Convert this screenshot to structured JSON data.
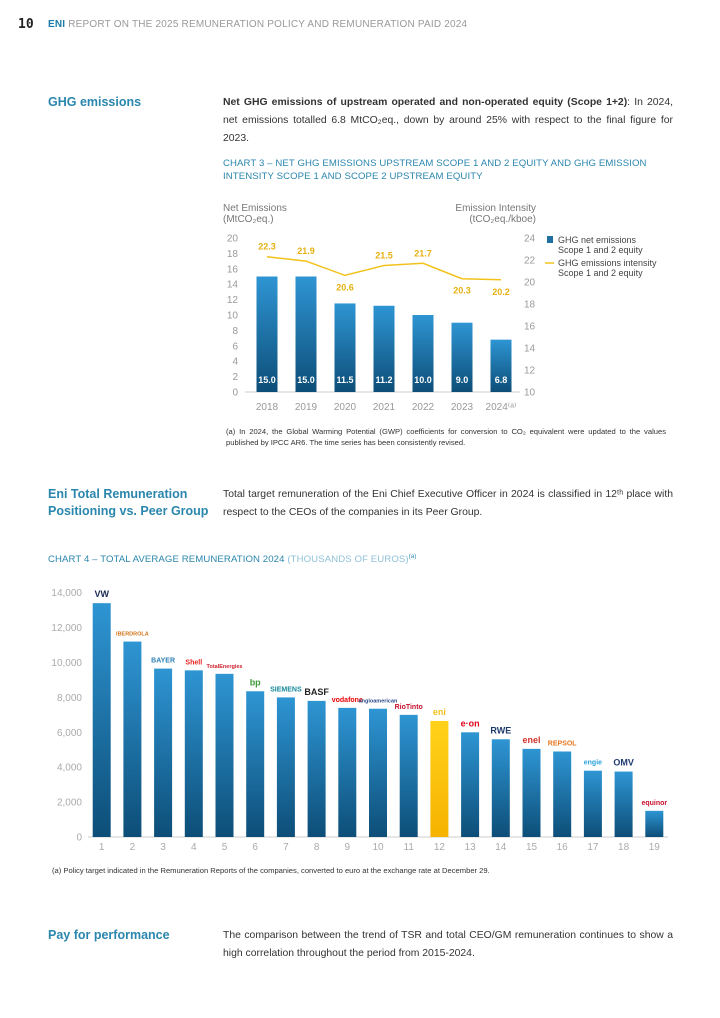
{
  "header": {
    "page_number": "10",
    "brand": "ENI",
    "title": "REPORT ON THE 2025 REMUNERATION POLICY AND REMUNERATION PAID 2024"
  },
  "ghg": {
    "heading": "GHG emissions",
    "text_bold": "Net GHG emissions of upstream operated and non-operated equity (Scope 1+2)",
    "text_rest": ": In 2024, net emissions totalled 6.8 MtCO₂eq., down by around 25% with respect to the final figure for 2023."
  },
  "peer": {
    "heading_line1": "Eni Total Remuneration",
    "heading_line2": "Positioning vs. Peer Group",
    "text": "Total target remuneration of the Eni Chief Executive Officer in 2024 is classified in 12ᵗʰ place with respect to the CEOs of the companies in its Peer Group."
  },
  "pay": {
    "heading": "Pay for performance",
    "text": "The comparison between the trend of TSR and total CEO/GM remuneration continues to show a high correlation throughout the period from 2015-2024."
  },
  "chart_data": [
    {
      "type": "bar",
      "title_line1": "CHART 3 – NET GHG EMISSIONS UPSTREAM SCOPE 1 AND 2 EQUITY AND GHG EMISSION",
      "title_line2": "INTENSITY SCOPE 1 AND SCOPE 2 UPSTREAM EQUITY",
      "ylabel_left_line1": "Net Emissions",
      "ylabel_left_line2": "(MtCO₂eq.)",
      "ylabel_right_line1": "Emission Intensity",
      "ylabel_right_line2": "(tCO₂eq./kboe)",
      "categories": [
        "2018",
        "2019",
        "2020",
        "2021",
        "2022",
        "2023",
        "2024⁽ᵃ⁾"
      ],
      "series": [
        {
          "name": "GHG net emissions Scope 1 and 2 equity",
          "legend_line1": "GHG net emissions",
          "legend_line2": "Scope 1 and 2 equity",
          "type": "bar",
          "axis": "left",
          "values": [
            15.0,
            15.0,
            11.5,
            11.2,
            10.0,
            9.0,
            6.8
          ],
          "color": "#1f78b4"
        },
        {
          "name": "GHG emissions intensity Scope 1 and 2 equity",
          "legend_line1": "GHG emissions intensity",
          "legend_line2": "Scope 1 and 2 equity",
          "type": "line",
          "axis": "right",
          "values": [
            22.3,
            21.9,
            20.6,
            21.5,
            21.7,
            20.3,
            20.2
          ],
          "color": "#f2c21b"
        }
      ],
      "ylim_left": [
        0,
        20
      ],
      "yticks_left": [
        0,
        2,
        4,
        6,
        8,
        10,
        12,
        14,
        16,
        18,
        20
      ],
      "ylim_right": [
        10,
        24
      ],
      "yticks_right": [
        10,
        12,
        14,
        16,
        18,
        20,
        22,
        24
      ],
      "legend": "right",
      "footnote": "(a) In 2024, the Global Warming Potential (GWP) coefficients for conversion to CO₂ equivalent were updated to the values published by IPCC AR6. The time series has been consistently revised."
    },
    {
      "type": "bar",
      "title": "CHART 4 – TOTAL AVERAGE REMUNERATION 2024",
      "title_unit": "(THOUSANDS OF EUROS)",
      "title_note": "(a)",
      "categories": [
        "1",
        "2",
        "3",
        "4",
        "5",
        "6",
        "7",
        "8",
        "9",
        "10",
        "11",
        "12",
        "13",
        "14",
        "15",
        "16",
        "17",
        "18",
        "19"
      ],
      "companies": [
        "VW",
        "IBERDROLA",
        "BAYER",
        "Shell",
        "TotalEnergies",
        "bp",
        "SIEMENS",
        "BASF",
        "vodafone",
        "angloamerican",
        "RioTinto",
        "eni",
        "e·on",
        "RWE",
        "enel",
        "REPSOL",
        "engie",
        "OMV",
        "equinor"
      ],
      "values": [
        13400,
        11200,
        9650,
        9550,
        9350,
        8350,
        8000,
        7800,
        7400,
        7350,
        7000,
        6650,
        6000,
        5600,
        5050,
        4900,
        3800,
        3750,
        1500
      ],
      "highlight_index": 11,
      "colors": {
        "bar": "#1f78b4",
        "highlight": "#fdc300"
      },
      "ylim": [
        0,
        14000
      ],
      "yticks": [
        "0",
        "2,000",
        "4,000",
        "6,000",
        "8,000",
        "10,000",
        "12,000",
        "14,000"
      ],
      "footnote": "(a) Policy target indicated in the Remuneration Reports of the companies, converted to euro at the exchange rate at December 29."
    }
  ]
}
